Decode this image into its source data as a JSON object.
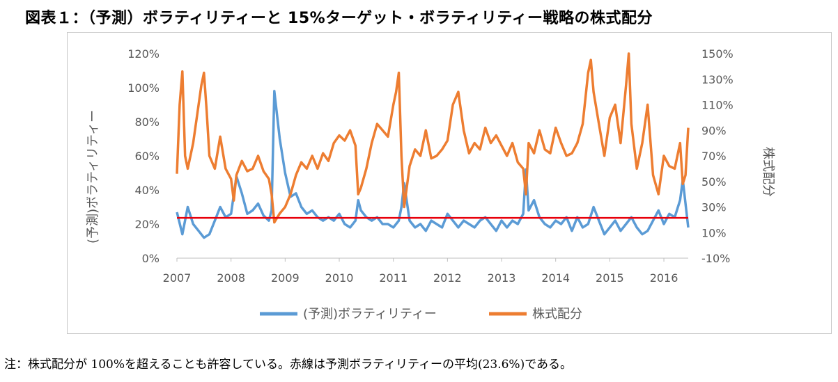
{
  "title": "図表１：（予測）ボラティリティーと 15%ターゲット・ボラティリティー戦略の株式配分",
  "note": "注：株式配分が 100%を超えることも許容している。赤線は予測ボラティリティーの平均(23.6%)である。",
  "chart_data": {
    "type": "line",
    "title": "図表１：（予測）ボラティリティーと 15%ターゲット・ボラティリティー戦略の株式配分",
    "x_tick_labels": [
      "2007",
      "2008",
      "2009",
      "2010",
      "2011",
      "2012",
      "2013",
      "2014",
      "2015",
      "2016"
    ],
    "xlim": [
      2007.0,
      2016.45
    ],
    "y_left": {
      "label": "(予測)ボラティリティー",
      "ticks": [
        "0%",
        "20%",
        "40%",
        "60%",
        "80%",
        "100%",
        "120%"
      ],
      "ylim": [
        0,
        120
      ]
    },
    "y_right": {
      "label": "株式配分",
      "ticks": [
        "-10%",
        "10%",
        "30%",
        "50%",
        "70%",
        "90%",
        "110%",
        "130%",
        "150%"
      ],
      "ylim": [
        -10,
        150
      ]
    },
    "legend": {
      "position": "bottom",
      "entries": [
        "(予測)ボラティリティー",
        "株式配分"
      ]
    },
    "colors": {
      "volatility": "#5b9bd5",
      "allocation": "#ed7d31",
      "mean_line": "#e8000b"
    },
    "reference_line": {
      "axis": "left",
      "value": 23.6,
      "color": "#e8000b"
    },
    "series": [
      {
        "name": "(予測)ボラティリティー",
        "axis": "left",
        "x": [
          2007.0,
          2007.1,
          2007.2,
          2007.3,
          2007.4,
          2007.5,
          2007.6,
          2007.7,
          2007.8,
          2007.9,
          2008.0,
          2008.1,
          2008.2,
          2008.3,
          2008.4,
          2008.5,
          2008.6,
          2008.7,
          2008.75,
          2008.8,
          2008.9,
          2009.0,
          2009.1,
          2009.2,
          2009.3,
          2009.4,
          2009.5,
          2009.6,
          2009.7,
          2009.8,
          2009.9,
          2010.0,
          2010.1,
          2010.2,
          2010.3,
          2010.35,
          2010.4,
          2010.5,
          2010.6,
          2010.7,
          2010.8,
          2010.9,
          2011.0,
          2011.1,
          2011.15,
          2011.2,
          2011.3,
          2011.4,
          2011.5,
          2011.6,
          2011.7,
          2011.8,
          2011.9,
          2012.0,
          2012.1,
          2012.2,
          2012.3,
          2012.4,
          2012.5,
          2012.6,
          2012.7,
          2012.8,
          2012.9,
          2013.0,
          2013.1,
          2013.2,
          2013.3,
          2013.4,
          2013.45,
          2013.5,
          2013.6,
          2013.7,
          2013.8,
          2013.9,
          2014.0,
          2014.1,
          2014.2,
          2014.3,
          2014.4,
          2014.5,
          2014.6,
          2014.7,
          2014.8,
          2014.9,
          2015.0,
          2015.1,
          2015.2,
          2015.3,
          2015.4,
          2015.5,
          2015.6,
          2015.7,
          2015.8,
          2015.9,
          2016.0,
          2016.1,
          2016.2,
          2016.3,
          2016.35,
          2016.45
        ],
        "values": [
          27,
          14,
          30,
          20,
          16,
          12,
          14,
          22,
          30,
          24,
          26,
          48,
          38,
          26,
          28,
          32,
          25,
          22,
          28,
          98,
          70,
          50,
          36,
          38,
          30,
          26,
          28,
          24,
          22,
          24,
          22,
          26,
          20,
          18,
          22,
          34,
          28,
          24,
          22,
          24,
          20,
          20,
          18,
          22,
          30,
          44,
          22,
          18,
          20,
          16,
          22,
          20,
          18,
          26,
          22,
          18,
          22,
          20,
          18,
          22,
          24,
          20,
          16,
          22,
          18,
          22,
          20,
          26,
          52,
          28,
          34,
          24,
          20,
          18,
          22,
          20,
          24,
          16,
          24,
          18,
          20,
          30,
          22,
          14,
          18,
          22,
          16,
          20,
          24,
          18,
          14,
          16,
          22,
          28,
          20,
          26,
          24,
          34,
          46,
          18
        ]
      },
      {
        "name": "株式配分",
        "axis": "right",
        "x": [
          2007.0,
          2007.05,
          2007.1,
          2007.15,
          2007.2,
          2007.3,
          2007.4,
          2007.45,
          2007.5,
          2007.55,
          2007.6,
          2007.7,
          2007.8,
          2007.9,
          2008.0,
          2008.05,
          2008.1,
          2008.2,
          2008.3,
          2008.4,
          2008.5,
          2008.6,
          2008.7,
          2008.75,
          2008.8,
          2008.9,
          2009.0,
          2009.1,
          2009.2,
          2009.3,
          2009.4,
          2009.5,
          2009.6,
          2009.7,
          2009.8,
          2009.9,
          2010.0,
          2010.1,
          2010.2,
          2010.3,
          2010.35,
          2010.4,
          2010.5,
          2010.6,
          2010.7,
          2010.8,
          2010.9,
          2011.0,
          2011.05,
          2011.1,
          2011.15,
          2011.2,
          2011.3,
          2011.4,
          2011.5,
          2011.6,
          2011.7,
          2011.8,
          2011.9,
          2012.0,
          2012.1,
          2012.2,
          2012.3,
          2012.4,
          2012.5,
          2012.6,
          2012.7,
          2012.8,
          2012.9,
          2013.0,
          2013.1,
          2013.2,
          2013.3,
          2013.4,
          2013.45,
          2013.5,
          2013.6,
          2013.7,
          2013.8,
          2013.9,
          2014.0,
          2014.1,
          2014.2,
          2014.3,
          2014.4,
          2014.5,
          2014.6,
          2014.65,
          2014.7,
          2014.8,
          2014.9,
          2015.0,
          2015.1,
          2015.2,
          2015.3,
          2015.35,
          2015.4,
          2015.5,
          2015.6,
          2015.7,
          2015.8,
          2015.9,
          2016.0,
          2016.1,
          2016.2,
          2016.3,
          2016.35,
          2016.4,
          2016.45
        ],
        "values": [
          56,
          110,
          136,
          70,
          60,
          80,
          110,
          125,
          135,
          105,
          70,
          60,
          85,
          60,
          52,
          35,
          55,
          66,
          58,
          60,
          70,
          58,
          52,
          40,
          18,
          25,
          30,
          40,
          55,
          65,
          60,
          70,
          60,
          72,
          66,
          80,
          86,
          82,
          90,
          78,
          40,
          45,
          60,
          80,
          95,
          90,
          85,
          110,
          120,
          135,
          70,
          30,
          62,
          75,
          70,
          90,
          68,
          70,
          75,
          82,
          110,
          120,
          90,
          72,
          80,
          75,
          92,
          80,
          86,
          78,
          70,
          80,
          65,
          60,
          40,
          80,
          72,
          90,
          75,
          72,
          92,
          80,
          70,
          72,
          80,
          95,
          135,
          145,
          120,
          95,
          70,
          100,
          110,
          80,
          125,
          150,
          95,
          60,
          80,
          110,
          55,
          40,
          70,
          62,
          60,
          80,
          48,
          55,
          92
        ]
      }
    ]
  }
}
